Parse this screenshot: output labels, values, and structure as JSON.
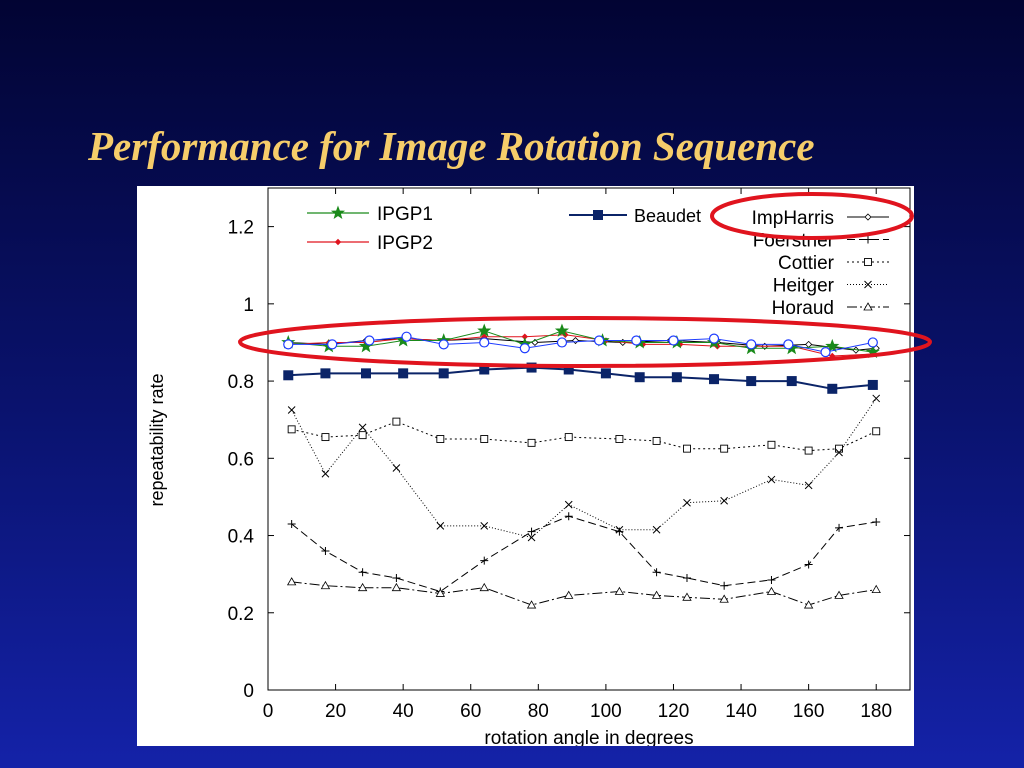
{
  "slide": {
    "title": "Performance for Image Rotation Sequence"
  },
  "colors": {
    "background_top": "#020433",
    "background_bottom": "#1422a8",
    "title": "#f6cd6a",
    "highlight_ring": "#e0141e"
  },
  "chart_data": {
    "type": "line",
    "title": "",
    "xlabel": "rotation angle in degrees",
    "ylabel": "repeatability rate",
    "xlim": [
      0,
      190
    ],
    "ylim": [
      0,
      1.3
    ],
    "x_ticks": [
      "0",
      "20",
      "40",
      "60",
      "80",
      "100",
      "120",
      "140",
      "160",
      "180"
    ],
    "y_ticks": [
      "0",
      "0.2",
      "0.4",
      "0.6",
      "0.8",
      "1",
      "1.2"
    ],
    "grid": false,
    "highlights": [
      {
        "target": "legend-entry",
        "series": "ImpHarris",
        "shape": "ellipse",
        "color": "#e0141e"
      },
      {
        "target": "band",
        "y_range": [
          0.86,
          0.94
        ],
        "shape": "ellipse",
        "color": "#e0141e"
      }
    ],
    "legends": [
      {
        "placement": "top-left",
        "entries": [
          "IPGP1",
          "IPGP2"
        ]
      },
      {
        "placement": "top-center",
        "entries": [
          "Beaudet"
        ]
      },
      {
        "placement": "top-right",
        "entries": [
          "ImpHarris",
          "Foerstner",
          "Cottier",
          "Heitger",
          "Horaud"
        ]
      }
    ],
    "series": [
      {
        "name": "ImpHarris",
        "color": "#000000",
        "dash": "",
        "marker": "diamond",
        "x": [
          6,
          18,
          29,
          40,
          52,
          64,
          79,
          91,
          105,
          119,
          133,
          147,
          160,
          174,
          180
        ],
        "y": [
          0.9,
          0.895,
          0.905,
          0.91,
          0.905,
          0.91,
          0.9,
          0.905,
          0.9,
          0.905,
          0.9,
          0.89,
          0.895,
          0.88,
          0.885
        ]
      },
      {
        "name": "Foerstner",
        "color": "#000000",
        "dash": "8,4",
        "marker": "plus",
        "x": [
          7,
          17,
          28,
          38,
          51,
          64,
          78,
          89,
          104,
          115,
          124,
          135,
          149,
          160,
          169,
          180
        ],
        "y": [
          0.43,
          0.36,
          0.305,
          0.29,
          0.255,
          0.335,
          0.41,
          0.45,
          0.41,
          0.305,
          0.29,
          0.27,
          0.285,
          0.325,
          0.42,
          0.435
        ]
      },
      {
        "name": "Cottier",
        "color": "#000000",
        "dash": "2,3",
        "marker": "square",
        "x": [
          7,
          17,
          28,
          38,
          51,
          64,
          78,
          89,
          104,
          115,
          124,
          135,
          149,
          160,
          169,
          180
        ],
        "y": [
          0.675,
          0.655,
          0.66,
          0.695,
          0.65,
          0.65,
          0.64,
          0.655,
          0.65,
          0.645,
          0.625,
          0.625,
          0.635,
          0.62,
          0.625,
          0.67
        ]
      },
      {
        "name": "Heitger",
        "color": "#000000",
        "dash": "1,2",
        "marker": "cross",
        "x": [
          7,
          17,
          28,
          38,
          51,
          64,
          78,
          89,
          104,
          115,
          124,
          135,
          149,
          160,
          169,
          180
        ],
        "y": [
          0.725,
          0.56,
          0.68,
          0.575,
          0.425,
          0.425,
          0.395,
          0.48,
          0.415,
          0.415,
          0.485,
          0.49,
          0.545,
          0.53,
          0.615,
          0.755
        ]
      },
      {
        "name": "Horaud",
        "color": "#000000",
        "dash": "10,3,2,3",
        "marker": "triangle",
        "x": [
          7,
          17,
          28,
          38,
          51,
          64,
          78,
          89,
          104,
          115,
          124,
          135,
          149,
          160,
          169,
          180
        ],
        "y": [
          0.28,
          0.27,
          0.265,
          0.265,
          0.25,
          0.265,
          0.22,
          0.245,
          0.255,
          0.245,
          0.24,
          0.235,
          0.255,
          0.22,
          0.245,
          0.26
        ]
      },
      {
        "name": "Beaudet",
        "color": "#0b2468",
        "dash": "",
        "marker": "filled-square",
        "x": [
          6,
          17,
          29,
          40,
          52,
          64,
          78,
          89,
          100,
          110,
          121,
          132,
          143,
          155,
          167,
          179
        ],
        "y": [
          0.815,
          0.82,
          0.82,
          0.82,
          0.82,
          0.83,
          0.835,
          0.83,
          0.82,
          0.81,
          0.81,
          0.805,
          0.8,
          0.8,
          0.78,
          0.79
        ]
      },
      {
        "name": "IPGP2",
        "color": "#e0141e",
        "dash": "",
        "marker": "small-diamond",
        "x": [
          6,
          18,
          29,
          40,
          52,
          64,
          76,
          88,
          100,
          111,
          122,
          133,
          144,
          155,
          167,
          179
        ],
        "y": [
          0.895,
          0.9,
          0.9,
          0.91,
          0.905,
          0.915,
          0.915,
          0.92,
          0.905,
          0.895,
          0.895,
          0.89,
          0.89,
          0.89,
          0.865,
          0.87
        ]
      },
      {
        "name": "IPGP1",
        "color": "#1a8a1a",
        "dash": "",
        "marker": "star",
        "x": [
          6,
          18,
          29,
          40,
          52,
          64,
          76,
          87,
          99,
          110,
          121,
          132,
          143,
          155,
          167,
          179
        ],
        "y": [
          0.9,
          0.89,
          0.89,
          0.905,
          0.905,
          0.93,
          0.895,
          0.93,
          0.905,
          0.9,
          0.9,
          0.9,
          0.885,
          0.885,
          0.89,
          0.875
        ]
      },
      {
        "name": "",
        "color": "#1e3cff",
        "dash": "",
        "marker": "circle",
        "x": [
          6,
          19,
          30,
          41,
          52,
          64,
          76,
          87,
          98,
          109,
          120,
          132,
          143,
          154,
          165,
          179
        ],
        "y": [
          0.895,
          0.895,
          0.905,
          0.915,
          0.895,
          0.9,
          0.885,
          0.9,
          0.905,
          0.905,
          0.905,
          0.91,
          0.895,
          0.895,
          0.875,
          0.9
        ]
      }
    ]
  }
}
